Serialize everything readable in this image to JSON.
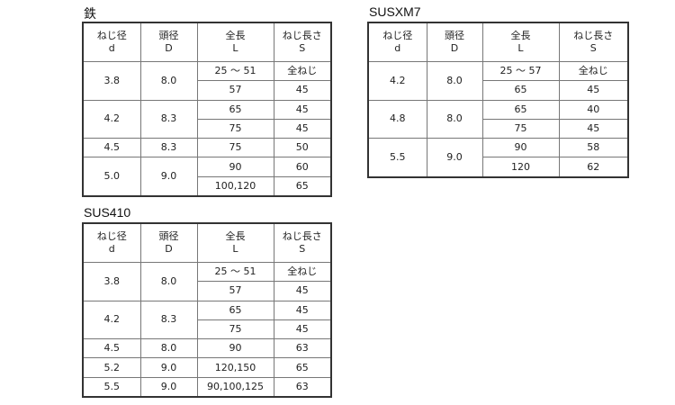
{
  "tables": [
    {
      "title": "鉄",
      "headers": [
        [
          "ねじ径",
          "d"
        ],
        [
          "頭径",
          "D"
        ],
        [
          "全長",
          "L"
        ],
        [
          "ねじ長さ",
          "S"
        ]
      ],
      "groups": [
        {
          "d": "3.8",
          "D": "8.0",
          "rows": [
            [
              "25 ～ 51",
              "全ねじ"
            ],
            [
              "57",
              "45"
            ]
          ]
        },
        {
          "d": "4.2",
          "D": "8.3",
          "rows": [
            [
              "65",
              "45"
            ],
            [
              "75",
              "45"
            ]
          ]
        },
        {
          "d": "4.5",
          "D": "8.3",
          "rows": [
            [
              "75",
              "50"
            ]
          ]
        },
        {
          "d": "5.0",
          "D": "9.0",
          "rows": [
            [
              "90",
              "60"
            ],
            [
              "100,120",
              "65"
            ]
          ]
        }
      ]
    },
    {
      "title": "SUSXM7",
      "headers": [
        [
          "ねじ径",
          "d"
        ],
        [
          "頭径",
          "D"
        ],
        [
          "全長",
          "L"
        ],
        [
          "ねじ長さ",
          "S"
        ]
      ],
      "groups": [
        {
          "d": "4.2",
          "D": "8.0",
          "rows": [
            [
              "25 ～ 57",
              "全ねじ"
            ],
            [
              "65",
              "45"
            ]
          ]
        },
        {
          "d": "4.8",
          "D": "8.0",
          "rows": [
            [
              "65",
              "40"
            ],
            [
              "75",
              "45"
            ]
          ]
        },
        {
          "d": "5.5",
          "D": "9.0",
          "rows": [
            [
              "90",
              "58"
            ],
            [
              "120",
              "62"
            ]
          ]
        }
      ]
    },
    {
      "title": "SUS410",
      "headers": [
        [
          "ねじ径",
          "d"
        ],
        [
          "頭径",
          "D"
        ],
        [
          "全長",
          "L"
        ],
        [
          "ねじ長さ",
          "S"
        ]
      ],
      "groups": [
        {
          "d": "3.8",
          "D": "8.0",
          "rows": [
            [
              "25 ～ 51",
              "全ねじ"
            ],
            [
              "57",
              "45"
            ]
          ]
        },
        {
          "d": "4.2",
          "D": "8.3",
          "rows": [
            [
              "65",
              "45"
            ],
            [
              "75",
              "45"
            ]
          ]
        },
        {
          "d": "4.5",
          "D": "8.0",
          "rows": [
            [
              "90",
              "63"
            ]
          ]
        },
        {
          "d": "5.2",
          "D": "9.0",
          "rows": [
            [
              "120,150",
              "65"
            ]
          ]
        },
        {
          "d": "5.5",
          "D": "9.0",
          "rows": [
            [
              "90,100,125",
              "63"
            ]
          ]
        }
      ]
    }
  ]
}
